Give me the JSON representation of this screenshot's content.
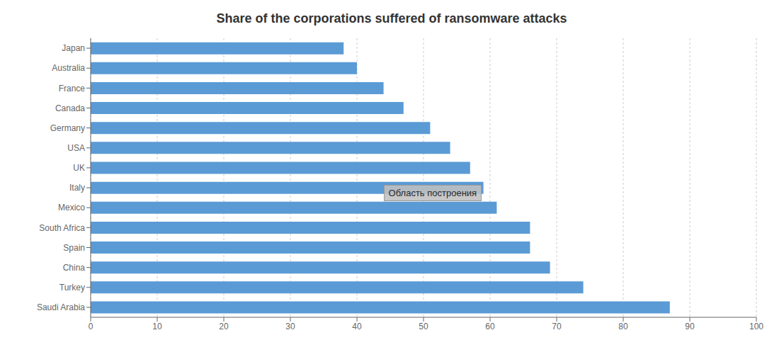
{
  "chart_data": {
    "type": "bar",
    "orientation": "horizontal",
    "title": "Share of the corporations suffered of ransomware attacks",
    "categories": [
      "Saudi Arabia",
      "Turkey",
      "China",
      "Spain",
      "South Africa",
      "Mexico",
      "Italy",
      "UK",
      "USA",
      "Germany",
      "Canada",
      "France",
      "Australia",
      "Japan"
    ],
    "values": [
      87,
      74,
      69,
      66,
      66,
      61,
      59,
      57,
      54,
      51,
      47,
      44,
      40,
      38
    ],
    "color": "#5B9BD5",
    "xlim": [
      0,
      100
    ],
    "xticks": [
      0,
      10,
      20,
      30,
      40,
      50,
      60,
      70,
      80,
      90,
      100
    ],
    "grid": true,
    "annotation": "Область построения"
  }
}
